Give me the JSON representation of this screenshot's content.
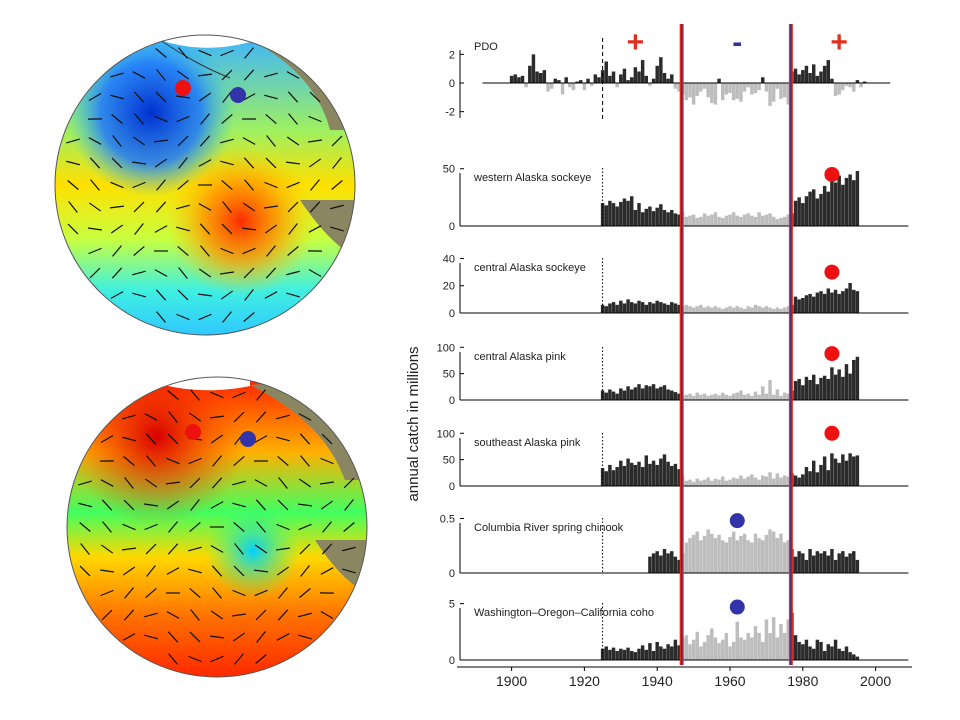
{
  "colors": {
    "positive_bar": "#2b2b2b",
    "negative_bar": "#bdbdbd",
    "regime_line_red": "#e0301e",
    "regime_line_blue": "#3030a0",
    "dot_red": "#ee1111",
    "dot_blue": "#3333aa",
    "ocean": "#7a7a55",
    "land": "#8b8662"
  },
  "icons": {
    "globe_top": "pdo-warm-phase-sst-map",
    "globe_bottom": "pdo-cool-phase-sst-map"
  },
  "chart_data": {
    "type": "bar",
    "ylabel": "annual catch in millions",
    "xlim": [
      1885,
      2010
    ],
    "xticks": [
      "1900",
      "1920",
      "1940",
      "1960",
      "1980",
      "2000"
    ],
    "regime_shifts": [
      1925,
      1947,
      1977
    ],
    "phase_signs": [
      {
        "x": 1934,
        "sign": "+",
        "color": "#e0301e"
      },
      {
        "x": 1962,
        "sign": "-",
        "color": "#3030a0"
      },
      {
        "x": 1990,
        "sign": "+",
        "color": "#e0301e"
      }
    ],
    "panels": [
      {
        "label": "PDO",
        "yticks": [
          "2",
          "0",
          "-2"
        ],
        "ytick_values": [
          2,
          0,
          -2
        ],
        "ylim": [
          -3,
          3
        ],
        "dot": null,
        "x": [
          1900,
          1901,
          1902,
          1903,
          1904,
          1905,
          1906,
          1907,
          1908,
          1909,
          1910,
          1911,
          1912,
          1913,
          1914,
          1915,
          1916,
          1917,
          1918,
          1919,
          1920,
          1921,
          1922,
          1923,
          1924,
          1925,
          1926,
          1927,
          1928,
          1929,
          1930,
          1931,
          1932,
          1933,
          1934,
          1935,
          1936,
          1937,
          1938,
          1939,
          1940,
          1941,
          1942,
          1943,
          1944,
          1945,
          1946,
          1947,
          1948,
          1949,
          1950,
          1951,
          1952,
          1953,
          1954,
          1955,
          1956,
          1957,
          1958,
          1959,
          1960,
          1961,
          1962,
          1963,
          1964,
          1965,
          1966,
          1967,
          1968,
          1969,
          1970,
          1971,
          1972,
          1973,
          1974,
          1975,
          1976,
          1977,
          1978,
          1979,
          1980,
          1981,
          1982,
          1983,
          1984,
          1985,
          1986,
          1987,
          1988,
          1989,
          1990,
          1991,
          1992,
          1993,
          1994,
          1995,
          1996,
          1997
        ],
        "values": [
          0.5,
          0.6,
          0.4,
          0.5,
          -0.3,
          1.2,
          2.0,
          0.8,
          0.7,
          0.9,
          -0.6,
          -0.4,
          0.3,
          0.2,
          -0.8,
          0.4,
          -0.3,
          -0.5,
          0.1,
          0.2,
          -0.5,
          0.3,
          -0.2,
          0.6,
          0.4,
          0.9,
          1.5,
          0.5,
          0.8,
          -0.3,
          0.6,
          1.0,
          0.2,
          0.4,
          1.1,
          0.8,
          1.6,
          0.5,
          -0.2,
          0.3,
          1.2,
          1.8,
          0.7,
          0.3,
          0.6,
          -0.4,
          -0.6,
          -0.8,
          -1.2,
          -1.0,
          -1.5,
          -0.9,
          -0.6,
          -0.4,
          -1.0,
          -1.4,
          -1.5,
          0.3,
          -1.2,
          -0.8,
          -0.7,
          -1.2,
          -1.1,
          -1.3,
          -0.6,
          -0.3,
          -0.8,
          -0.7,
          -0.5,
          0.4,
          -0.6,
          -1.6,
          -1.3,
          -0.4,
          -1.1,
          -1.0,
          -1.5,
          0.8,
          1.0,
          0.6,
          0.9,
          1.2,
          0.7,
          1.3,
          0.5,
          0.8,
          1.2,
          1.6,
          0.3,
          -0.9,
          -0.8,
          -0.5,
          -0.2,
          -0.3,
          -0.6,
          0.2,
          -0.3,
          0.1
        ]
      },
      {
        "label": "western Alaska sockeye",
        "yticks": [
          "50",
          "0"
        ],
        "ytick_values": [
          50,
          0
        ],
        "ylim": [
          0,
          55
        ],
        "dot": {
          "x": 1988,
          "y": 45,
          "color": "#ee1111"
        },
        "x": [
          1925,
          1926,
          1927,
          1928,
          1929,
          1930,
          1931,
          1932,
          1933,
          1934,
          1935,
          1936,
          1937,
          1938,
          1939,
          1940,
          1941,
          1942,
          1943,
          1944,
          1945,
          1946,
          1947,
          1948,
          1949,
          1950,
          1951,
          1952,
          1953,
          1954,
          1955,
          1956,
          1957,
          1958,
          1959,
          1960,
          1961,
          1962,
          1963,
          1964,
          1965,
          1966,
          1967,
          1968,
          1969,
          1970,
          1971,
          1972,
          1973,
          1974,
          1975,
          1976,
          1977,
          1978,
          1979,
          1980,
          1981,
          1982,
          1983,
          1984,
          1985,
          1986,
          1987,
          1988,
          1989,
          1990,
          1991,
          1992,
          1993,
          1994,
          1995
        ],
        "values": [
          20,
          18,
          22,
          20,
          17,
          21,
          24,
          22,
          26,
          14,
          20,
          12,
          15,
          17,
          13,
          16,
          19,
          14,
          12,
          14,
          11,
          10,
          12,
          8,
          9,
          10,
          7,
          8,
          11,
          9,
          10,
          12,
          8,
          7,
          9,
          10,
          12,
          9,
          8,
          10,
          11,
          9,
          8,
          12,
          9,
          10,
          11,
          8,
          6,
          7,
          8,
          10,
          11,
          22,
          25,
          20,
          26,
          30,
          32,
          24,
          28,
          35,
          30,
          40,
          38,
          44,
          36,
          42,
          45,
          40,
          48
        ]
      },
      {
        "label": "central Alaska sockeye",
        "yticks": [
          "40",
          "20",
          "0"
        ],
        "ytick_values": [
          40,
          20,
          0
        ],
        "ylim": [
          0,
          44
        ],
        "dot": {
          "x": 1988,
          "y": 30,
          "color": "#ee1111"
        },
        "x": [
          1925,
          1926,
          1927,
          1928,
          1929,
          1930,
          1931,
          1932,
          1933,
          1934,
          1935,
          1936,
          1937,
          1938,
          1939,
          1940,
          1941,
          1942,
          1943,
          1944,
          1945,
          1946,
          1947,
          1948,
          1949,
          1950,
          1951,
          1952,
          1953,
          1954,
          1955,
          1956,
          1957,
          1958,
          1959,
          1960,
          1961,
          1962,
          1963,
          1964,
          1965,
          1966,
          1967,
          1968,
          1969,
          1970,
          1971,
          1972,
          1973,
          1974,
          1975,
          1976,
          1977,
          1978,
          1979,
          1980,
          1981,
          1982,
          1983,
          1984,
          1985,
          1986,
          1987,
          1988,
          1989,
          1990,
          1991,
          1992,
          1993,
          1994,
          1995
        ],
        "values": [
          6,
          5,
          7,
          8,
          6,
          9,
          7,
          10,
          8,
          7,
          9,
          8,
          6,
          8,
          7,
          9,
          8,
          7,
          6,
          8,
          7,
          6,
          5,
          6,
          5,
          4,
          5,
          6,
          4,
          5,
          4,
          5,
          4,
          3,
          4,
          5,
          4,
          5,
          4,
          3,
          5,
          4,
          6,
          5,
          4,
          5,
          4,
          3,
          4,
          3,
          4,
          5,
          6,
          12,
          10,
          11,
          13,
          14,
          12,
          15,
          16,
          14,
          18,
          15,
          17,
          14,
          16,
          18,
          22,
          17,
          16
        ]
      },
      {
        "label": "central Alaska pink",
        "yticks": [
          "100",
          "50",
          "0"
        ],
        "ytick_values": [
          100,
          50,
          0
        ],
        "ylim": [
          0,
          110
        ],
        "dot": {
          "x": 1988,
          "y": 88,
          "color": "#ee1111"
        },
        "x": [
          1925,
          1926,
          1927,
          1928,
          1929,
          1930,
          1931,
          1932,
          1933,
          1934,
          1935,
          1936,
          1937,
          1938,
          1939,
          1940,
          1941,
          1942,
          1943,
          1944,
          1945,
          1946,
          1947,
          1948,
          1949,
          1950,
          1951,
          1952,
          1953,
          1954,
          1955,
          1956,
          1957,
          1958,
          1959,
          1960,
          1961,
          1962,
          1963,
          1964,
          1965,
          1966,
          1967,
          1968,
          1969,
          1970,
          1971,
          1972,
          1973,
          1974,
          1975,
          1976,
          1977,
          1978,
          1979,
          1980,
          1981,
          1982,
          1983,
          1984,
          1985,
          1986,
          1987,
          1988,
          1989,
          1990,
          1991,
          1992,
          1993,
          1994,
          1995
        ],
        "values": [
          18,
          14,
          20,
          16,
          12,
          22,
          18,
          26,
          20,
          24,
          30,
          22,
          28,
          26,
          30,
          22,
          25,
          28,
          20,
          18,
          15,
          12,
          8,
          10,
          12,
          8,
          14,
          10,
          12,
          8,
          10,
          12,
          9,
          14,
          10,
          8,
          12,
          14,
          18,
          10,
          12,
          8,
          16,
          10,
          26,
          12,
          38,
          10,
          20,
          8,
          14,
          12,
          18,
          36,
          40,
          28,
          44,
          38,
          48,
          30,
          42,
          46,
          40,
          62,
          48,
          58,
          44,
          68,
          50,
          76,
          82
        ]
      },
      {
        "label": "southeast Alaska pink",
        "yticks": [
          "100",
          "50",
          "0"
        ],
        "ytick_values": [
          100,
          50,
          0
        ],
        "ylim": [
          0,
          110
        ],
        "dot": {
          "x": 1988,
          "y": 100,
          "color": "#ee1111"
        },
        "x": [
          1925,
          1926,
          1927,
          1928,
          1929,
          1930,
          1931,
          1932,
          1933,
          1934,
          1935,
          1936,
          1937,
          1938,
          1939,
          1940,
          1941,
          1942,
          1943,
          1944,
          1945,
          1946,
          1947,
          1948,
          1949,
          1950,
          1951,
          1952,
          1953,
          1954,
          1955,
          1956,
          1957,
          1958,
          1959,
          1960,
          1961,
          1962,
          1963,
          1964,
          1965,
          1966,
          1967,
          1968,
          1969,
          1970,
          1971,
          1972,
          1973,
          1974,
          1975,
          1976,
          1977,
          1978,
          1979,
          1980,
          1981,
          1982,
          1983,
          1984,
          1985,
          1986,
          1987,
          1988,
          1989,
          1990,
          1991,
          1992,
          1993,
          1994,
          1995
        ],
        "values": [
          34,
          28,
          40,
          30,
          36,
          48,
          38,
          52,
          44,
          40,
          46,
          36,
          58,
          42,
          48,
          40,
          52,
          60,
          46,
          38,
          42,
          32,
          20,
          10,
          12,
          8,
          14,
          10,
          12,
          16,
          10,
          14,
          12,
          18,
          10,
          12,
          16,
          14,
          20,
          14,
          18,
          22,
          16,
          12,
          20,
          18,
          26,
          14,
          24,
          16,
          20,
          18,
          24,
          20,
          16,
          22,
          36,
          28,
          48,
          26,
          40,
          56,
          30,
          62,
          52,
          44,
          60,
          48,
          62,
          56,
          58
        ]
      },
      {
        "label": "Columbia River spring chinook",
        "yticks": [
          "0.5",
          "0"
        ],
        "ytick_values": [
          0.5,
          0
        ],
        "ylim": [
          0,
          0.55
        ],
        "dot": {
          "x": 1962,
          "y": 0.48,
          "color": "#3333aa"
        },
        "x": [
          1938,
          1939,
          1940,
          1941,
          1942,
          1943,
          1944,
          1945,
          1946,
          1947,
          1948,
          1949,
          1950,
          1951,
          1952,
          1953,
          1954,
          1955,
          1956,
          1957,
          1958,
          1959,
          1960,
          1961,
          1962,
          1963,
          1964,
          1965,
          1966,
          1967,
          1968,
          1969,
          1970,
          1971,
          1972,
          1973,
          1974,
          1975,
          1976,
          1977,
          1978,
          1979,
          1980,
          1981,
          1982,
          1983,
          1984,
          1985,
          1986,
          1987,
          1988,
          1989,
          1990,
          1991,
          1992,
          1993,
          1994,
          1995
        ],
        "values": [
          0.15,
          0.18,
          0.2,
          0.16,
          0.22,
          0.18,
          0.2,
          0.15,
          0.12,
          0.18,
          0.28,
          0.32,
          0.35,
          0.38,
          0.3,
          0.34,
          0.4,
          0.36,
          0.32,
          0.35,
          0.3,
          0.28,
          0.33,
          0.38,
          0.3,
          0.34,
          0.36,
          0.3,
          0.28,
          0.36,
          0.32,
          0.3,
          0.35,
          0.4,
          0.38,
          0.32,
          0.36,
          0.28,
          0.3,
          0.22,
          0.15,
          0.2,
          0.18,
          0.12,
          0.22,
          0.16,
          0.2,
          0.18,
          0.2,
          0.16,
          0.22,
          0.12,
          0.18,
          0.2,
          0.15,
          0.18,
          0.2,
          0.12
        ]
      },
      {
        "label": "Washington–Oregon–California coho",
        "yticks": [
          "5",
          "0"
        ],
        "ytick_values": [
          5,
          0
        ],
        "ylim": [
          0,
          5.5
        ],
        "dot": {
          "x": 1962,
          "y": 4.7,
          "color": "#3333aa"
        },
        "x": [
          1925,
          1926,
          1927,
          1928,
          1929,
          1930,
          1931,
          1932,
          1933,
          1934,
          1935,
          1936,
          1937,
          1938,
          1939,
          1940,
          1941,
          1942,
          1943,
          1944,
          1945,
          1946,
          1947,
          1948,
          1949,
          1950,
          1951,
          1952,
          1953,
          1954,
          1955,
          1956,
          1957,
          1958,
          1959,
          1960,
          1961,
          1962,
          1963,
          1964,
          1965,
          1966,
          1967,
          1968,
          1969,
          1970,
          1971,
          1972,
          1973,
          1974,
          1975,
          1976,
          1977,
          1978,
          1979,
          1980,
          1981,
          1982,
          1983,
          1984,
          1985,
          1986,
          1987,
          1988,
          1989,
          1990,
          1991,
          1992,
          1993,
          1994,
          1995
        ],
        "values": [
          1.0,
          1.2,
          0.9,
          1.1,
          0.8,
          1.0,
          0.9,
          1.1,
          0.8,
          0.7,
          1.0,
          1.3,
          0.9,
          1.5,
          0.8,
          1.6,
          1.2,
          1.0,
          1.4,
          1.2,
          1.8,
          1.3,
          2.0,
          2.2,
          1.4,
          1.8,
          2.5,
          1.2,
          1.6,
          2.2,
          2.8,
          2.0,
          1.5,
          1.8,
          2.4,
          1.2,
          1.6,
          3.4,
          2.0,
          1.8,
          2.4,
          2.0,
          3.0,
          2.4,
          1.6,
          3.6,
          2.4,
          3.8,
          2.0,
          3.2,
          2.4,
          3.6,
          4.2,
          2.2,
          1.6,
          1.4,
          1.8,
          1.2,
          1.0,
          1.8,
          1.6,
          0.8,
          1.4,
          1.2,
          1.8,
          1.0,
          0.8,
          1.2,
          0.7,
          0.5,
          0.3
        ]
      }
    ]
  }
}
